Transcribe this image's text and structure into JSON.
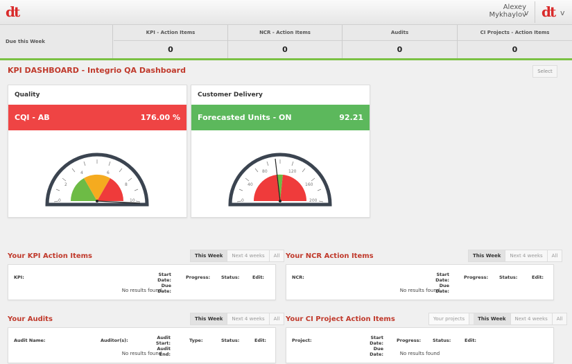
{
  "topbar": {
    "logo": "dt",
    "user_first": "Alexey",
    "user_last": "Mykhaylov",
    "chevron": "v"
  },
  "due": {
    "label": "Due this Week",
    "items": [
      {
        "label": "KPI - Action Items",
        "value": "0"
      },
      {
        "label": "NCR - Action Items",
        "value": "0"
      },
      {
        "label": "Audits",
        "value": "0"
      },
      {
        "label": "CI Projects - Action Items",
        "value": "0"
      }
    ]
  },
  "dashboard": {
    "title": "KPI DASHBOARD - Integrio QA Dashboard",
    "select": "Select"
  },
  "gauges": [
    {
      "card_title": "Quality",
      "metric": "CQI - AB",
      "value": "176.00 %",
      "ticks": [
        "0",
        "2",
        "4",
        "6",
        "8",
        "10"
      ],
      "color": "#ef4444"
    },
    {
      "card_title": "Customer Delivery",
      "metric": "Forecasted Units - ON",
      "value": "92.21",
      "ticks": [
        "0",
        "40",
        "80",
        "120",
        "160",
        "200"
      ],
      "color": "#5cb85c"
    }
  ],
  "sections": {
    "kpi": {
      "title": "Your KPI Action Items",
      "tabs": [
        "This Week",
        "Next 4 weeks",
        "All"
      ],
      "cols": [
        "KPI:",
        "Start Date:",
        "Due Date:",
        "Progress:",
        "Status:",
        "Edit:"
      ],
      "empty": "No results found"
    },
    "ncr": {
      "title": "Your NCR Action Items",
      "tabs": [
        "This Week",
        "Next 4 weeks",
        "All"
      ],
      "cols": [
        "NCR:",
        "Start Date:",
        "Due Date:",
        "Progress:",
        "Status:",
        "Edit:"
      ],
      "empty": "No results found"
    },
    "audits": {
      "title": "Your Audits",
      "tabs": [
        "This Week",
        "Next 4 weeks",
        "All"
      ],
      "cols": [
        "Audit Name:",
        "Auditor(s):",
        "Audit Start:",
        "Audit End:",
        "Type:",
        "Status:",
        "Edit:"
      ],
      "empty": "No results found"
    },
    "ci": {
      "title": "Your CI Project Action Items",
      "tabs": [
        "Your projects",
        "This Week",
        "Next 4 weeks",
        "All"
      ],
      "cols": [
        "Project:",
        "Start Date:",
        "Due Date:",
        "Progress:",
        "Status:",
        "Edit:"
      ],
      "empty": "No results found"
    }
  }
}
